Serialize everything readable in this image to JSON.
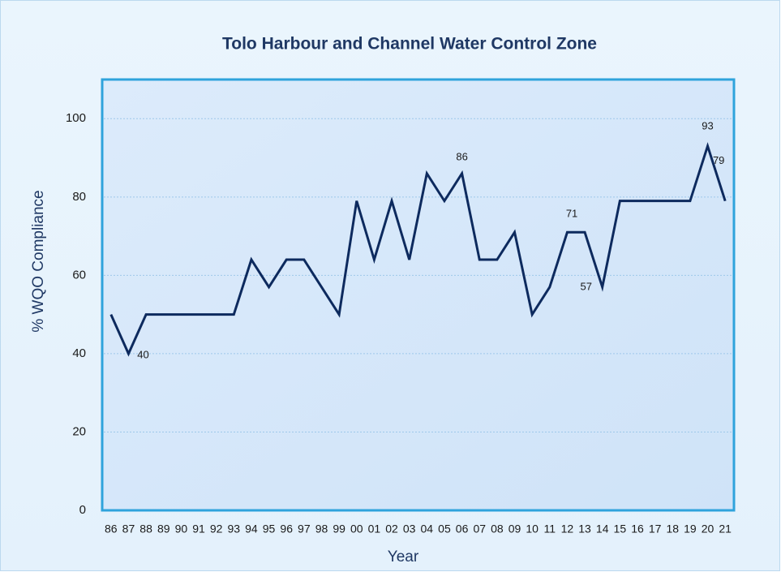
{
  "chart_data": {
    "type": "line",
    "title": "Tolo Harbour and Channel Water Control Zone",
    "x_label": "Year",
    "y_label": "% WQO Compliance",
    "categories": [
      "86",
      "87",
      "88",
      "89",
      "90",
      "91",
      "92",
      "93",
      "94",
      "95",
      "96",
      "97",
      "98",
      "99",
      "00",
      "01",
      "02",
      "03",
      "04",
      "05",
      "06",
      "07",
      "08",
      "09",
      "10",
      "11",
      "12",
      "13",
      "14",
      "15",
      "16",
      "17",
      "18",
      "19",
      "20",
      "21"
    ],
    "series": [
      {
        "name": "% WQO Compliance",
        "color": "#0d2a5e",
        "values": [
          50,
          40,
          50,
          50,
          50,
          50,
          50,
          50,
          64,
          57,
          64,
          64,
          57,
          50,
          79,
          64,
          79,
          64,
          86,
          79,
          86,
          64,
          64,
          71,
          50,
          57,
          71,
          71,
          57,
          79,
          79,
          79,
          79,
          79,
          93,
          79
        ],
        "value_labels": [
          null,
          "40",
          null,
          null,
          null,
          null,
          null,
          null,
          null,
          null,
          null,
          null,
          null,
          null,
          null,
          null,
          null,
          null,
          null,
          null,
          "86",
          null,
          null,
          null,
          null,
          null,
          null,
          "71",
          "57",
          null,
          null,
          null,
          null,
          null,
          "93",
          "79"
        ]
      }
    ],
    "ylim": [
      0,
      110
    ],
    "yticks": [
      0,
      20,
      40,
      60,
      80,
      100
    ],
    "grid": true
  }
}
